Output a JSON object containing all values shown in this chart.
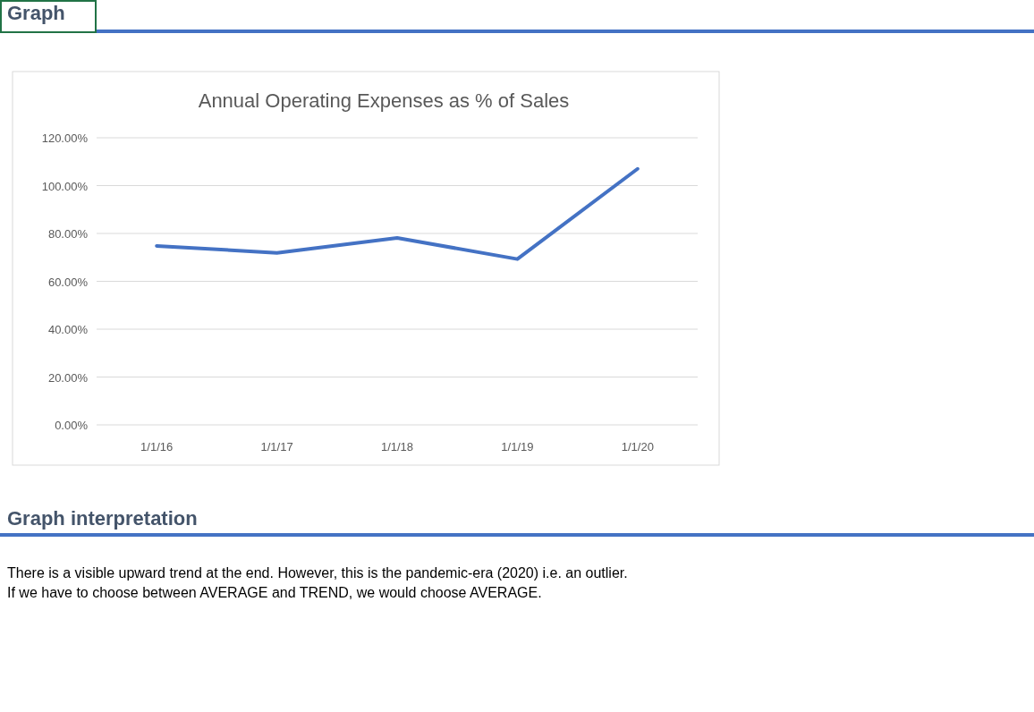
{
  "chart_data": {
    "type": "line",
    "title": "Annual Operating Expenses as % of Sales",
    "categories": [
      "1/1/16",
      "1/1/17",
      "1/1/18",
      "1/1/19",
      "1/1/20"
    ],
    "series": [
      {
        "color": "#4472c4",
        "values": [
          74.8,
          71.9,
          78.1,
          69.3,
          107.0
        ]
      }
    ],
    "ylim": [
      0,
      120
    ],
    "yticks": [
      {
        "value": 0,
        "label": "0.00%"
      },
      {
        "value": 20,
        "label": "20.00%"
      },
      {
        "value": 40,
        "label": "40.00%"
      },
      {
        "value": 60,
        "label": "60.00%"
      },
      {
        "value": 80,
        "label": "80.00%"
      },
      {
        "value": 100,
        "label": "100.00%"
      },
      {
        "value": 120,
        "label": "120.00%"
      }
    ],
    "grid": "y",
    "marker": "none",
    "line_style": "solid",
    "annotations": [
      "Graph",
      "Graph interpretation",
      "There is a visible upward trend at the end. However, this is the pandemic-era (2020) i.e. an outlier.",
      "If we have to choose between AVERAGE and TREND, we would choose AVERAGE."
    ]
  }
}
